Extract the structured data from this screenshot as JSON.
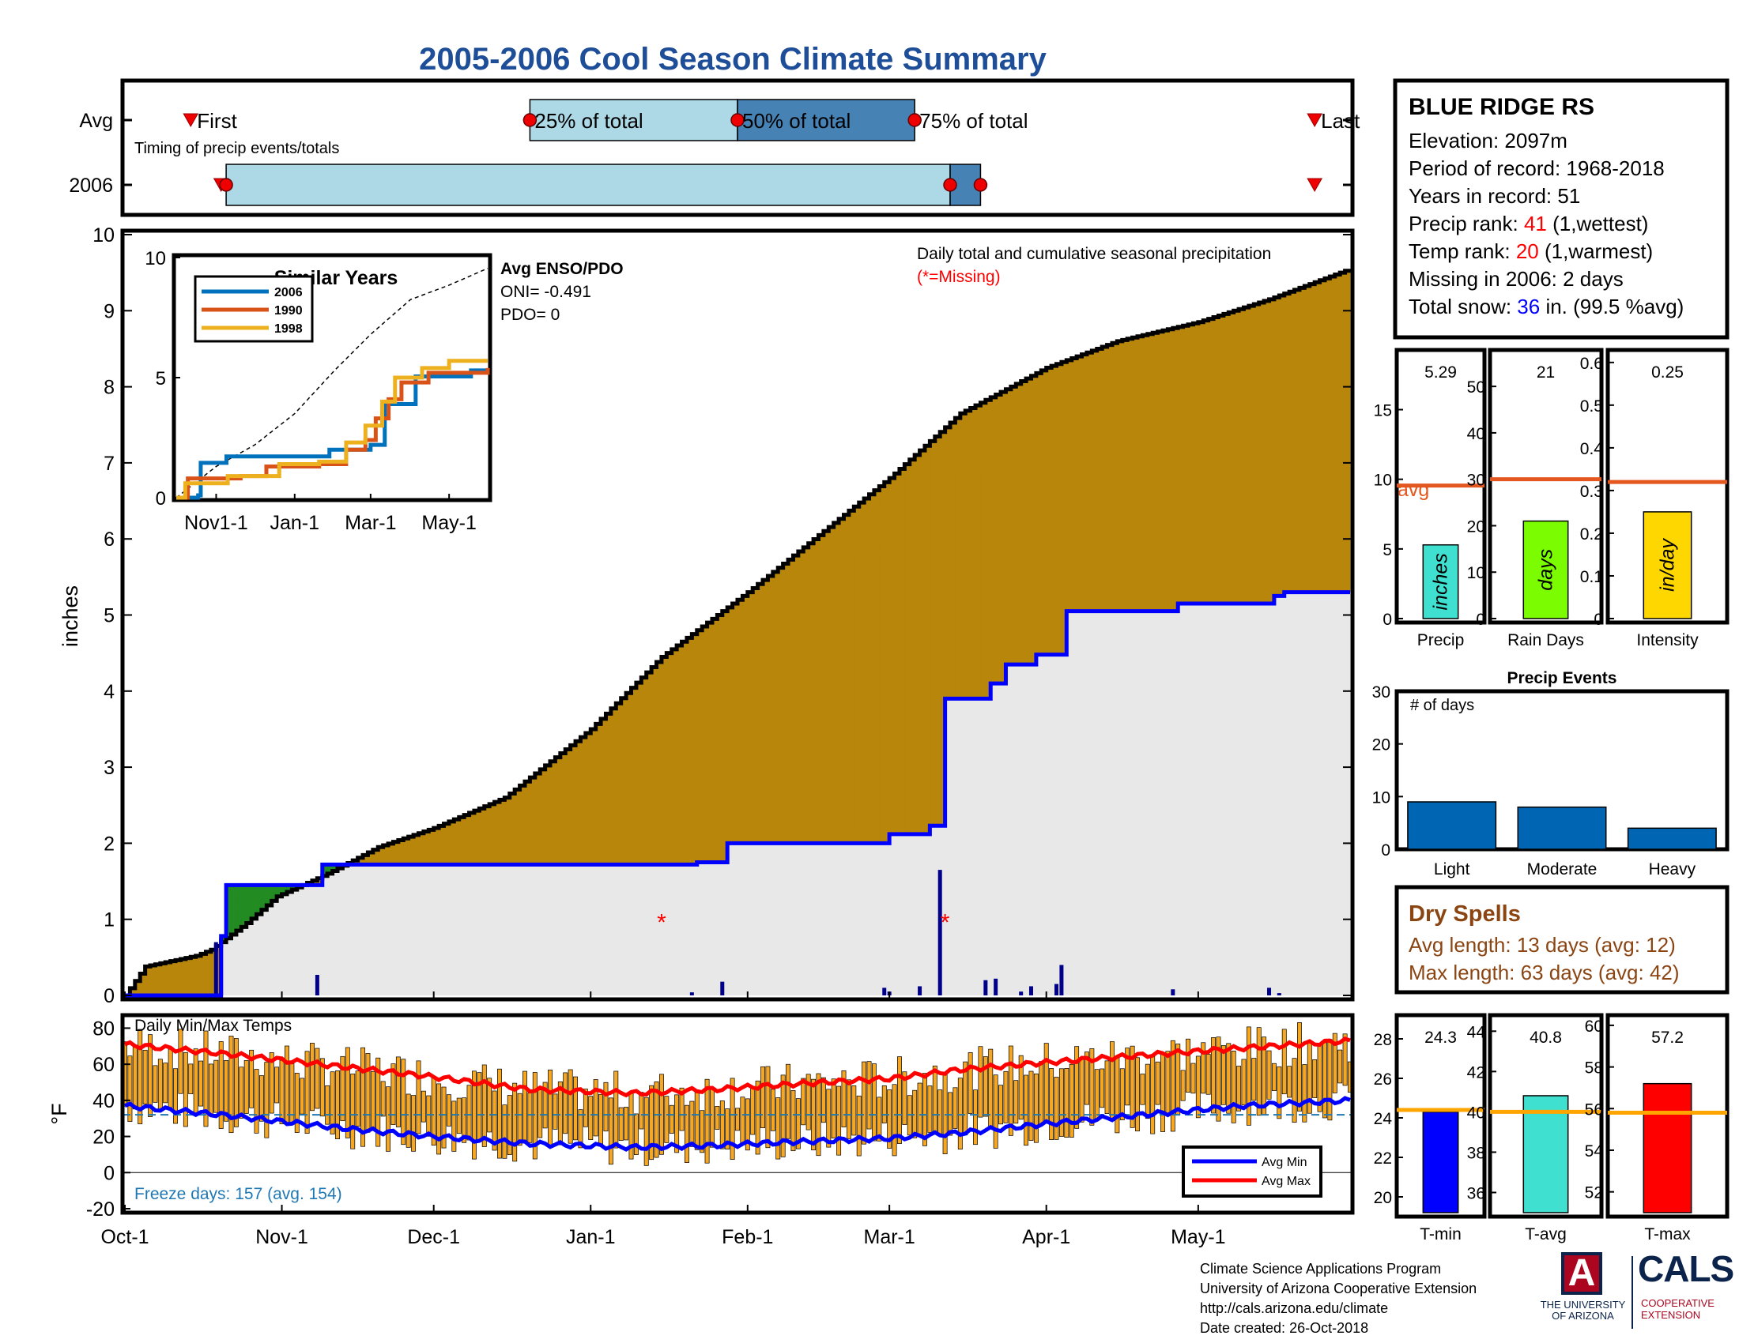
{
  "title": "2005-2006 Cool Season Climate Summary",
  "timing": {
    "rows": [
      "Avg",
      "2006"
    ],
    "caption": "Timing of precip events/totals",
    "labels": {
      "first": "First",
      "p25": "25% of total",
      "p50": "50% of total",
      "p75": "75% of total",
      "last": "Last"
    },
    "avg": {
      "first": "2005-10-14",
      "p25": "2005-12-20",
      "p50": "2006-01-30",
      "p75": "2006-03-06",
      "last": "2006-05-24"
    },
    "y2006": {
      "first": "2005-10-20",
      "p25": "2005-10-21",
      "p50": "2006-03-13",
      "p75": "2006-03-19",
      "last": "2006-05-24"
    }
  },
  "info": {
    "station": "BLUE RIDGE RS",
    "elevation": "Elevation: 2097m",
    "period": "Period of record: 1968-2018",
    "years": "Years in record: 51",
    "precip_rank_prefix": "Precip rank: ",
    "precip_rank": "41",
    "precip_rank_suffix": " (1,wettest)",
    "temp_rank_prefix": "Temp rank: ",
    "temp_rank": "20",
    "temp_rank_suffix": " (1,warmest)",
    "missing": "Missing in 2006: 2 days",
    "snow_prefix": "Total snow: ",
    "snow_value": "36",
    "snow_suffix": " in. (99.5 %avg)",
    "rank_color": "#ff0000",
    "snow_color": "#0000ff"
  },
  "colors": {
    "avg_cum": "#b8860b",
    "avg_cum_edge": "#000000",
    "obs_cum_line": "#0000ff",
    "obs_fill": "#e8e8e8",
    "surplus": "#228b22",
    "daily_bar": "#00008b",
    "temp_bar": "#f5a623",
    "avg_line": "#e4571f",
    "avg_temp_line": "#ffa500"
  },
  "chart_data": [
    {
      "id": "cumulative",
      "type": "area",
      "ylabel": "inches",
      "ylim": [
        0,
        10
      ],
      "yticks": [
        0,
        1,
        2,
        3,
        4,
        5,
        6,
        7,
        8,
        9,
        10
      ],
      "xlim": [
        "2005-10-01",
        "2006-05-31"
      ],
      "xticks": [
        {
          "date": "2005-10-01",
          "label": "Oct-1"
        },
        {
          "date": "2005-11-01",
          "label": "Nov-1"
        },
        {
          "date": "2005-12-01",
          "label": "Dec-1"
        },
        {
          "date": "2006-01-01",
          "label": "Jan-1"
        },
        {
          "date": "2006-02-01",
          "label": "Feb-1"
        },
        {
          "date": "2006-03-01",
          "label": "Mar-1"
        },
        {
          "date": "2006-04-01",
          "label": "Apr-1"
        },
        {
          "date": "2006-05-01",
          "label": "May-1"
        }
      ],
      "annotation": "Daily total and cumulative seasonal precipitation",
      "missing_note": "(*=Missing)",
      "missing_days": [
        "2006-01-15",
        "2006-03-12"
      ],
      "avg_cumulative": [
        [
          "2005-10-01",
          0.0
        ],
        [
          "2005-10-05",
          0.38
        ],
        [
          "2005-10-15",
          0.52
        ],
        [
          "2005-10-18",
          0.6
        ],
        [
          "2005-10-21",
          0.75
        ],
        [
          "2005-10-25",
          0.95
        ],
        [
          "2005-10-31",
          1.3
        ],
        [
          "2005-11-10",
          1.6
        ],
        [
          "2005-11-20",
          1.95
        ],
        [
          "2005-12-01",
          2.2
        ],
        [
          "2005-12-15",
          2.6
        ],
        [
          "2006-01-01",
          3.5
        ],
        [
          "2006-01-15",
          4.45
        ],
        [
          "2006-02-01",
          5.3
        ],
        [
          "2006-02-15",
          6.05
        ],
        [
          "2006-03-01",
          6.8
        ],
        [
          "2006-03-15",
          7.65
        ],
        [
          "2006-04-01",
          8.25
        ],
        [
          "2006-04-15",
          8.6
        ],
        [
          "2006-05-01",
          8.85
        ],
        [
          "2006-05-15",
          9.15
        ],
        [
          "2006-05-31",
          9.55
        ]
      ],
      "obs_cumulative": [
        [
          "2005-10-01",
          0.0
        ],
        [
          "2005-10-19",
          0.0
        ],
        [
          "2005-10-20",
          0.78
        ],
        [
          "2005-10-21",
          1.45
        ],
        [
          "2005-11-08",
          1.45
        ],
        [
          "2005-11-09",
          1.72
        ],
        [
          "2006-01-20",
          1.72
        ],
        [
          "2006-01-22",
          1.75
        ],
        [
          "2006-01-27",
          1.75
        ],
        [
          "2006-01-28",
          2.0
        ],
        [
          "2006-02-28",
          2.0
        ],
        [
          "2006-03-01",
          2.12
        ],
        [
          "2006-03-08",
          2.12
        ],
        [
          "2006-03-09",
          2.23
        ],
        [
          "2006-03-11",
          2.23
        ],
        [
          "2006-03-12",
          3.9
        ],
        [
          "2006-03-20",
          3.9
        ],
        [
          "2006-03-21",
          4.1
        ],
        [
          "2006-03-23",
          4.1
        ],
        [
          "2006-03-24",
          4.35
        ],
        [
          "2006-03-29",
          4.35
        ],
        [
          "2006-03-30",
          4.48
        ],
        [
          "2006-04-04",
          4.48
        ],
        [
          "2006-04-05",
          5.05
        ],
        [
          "2006-04-26",
          5.05
        ],
        [
          "2006-04-27",
          5.15
        ],
        [
          "2006-05-15",
          5.15
        ],
        [
          "2006-05-16",
          5.25
        ],
        [
          "2006-05-18",
          5.3
        ],
        [
          "2006-05-31",
          5.3
        ]
      ],
      "daily_precip": [
        [
          "2005-10-19",
          0.7
        ],
        [
          "2005-10-20",
          0.75
        ],
        [
          "2005-11-08",
          0.27
        ],
        [
          "2006-01-21",
          0.04
        ],
        [
          "2006-01-27",
          0.18
        ],
        [
          "2006-02-28",
          0.1
        ],
        [
          "2006-03-01",
          0.05
        ],
        [
          "2006-03-07",
          0.12
        ],
        [
          "2006-03-11",
          1.65
        ],
        [
          "2006-03-20",
          0.2
        ],
        [
          "2006-03-22",
          0.22
        ],
        [
          "2006-03-27",
          0.05
        ],
        [
          "2006-03-29",
          0.12
        ],
        [
          "2006-04-03",
          0.15
        ],
        [
          "2006-04-04",
          0.4
        ],
        [
          "2006-04-26",
          0.08
        ],
        [
          "2006-05-15",
          0.1
        ],
        [
          "2006-05-17",
          0.03
        ]
      ]
    },
    {
      "id": "similar_years",
      "type": "line",
      "title": "Similar Years",
      "ylim": [
        0,
        10
      ],
      "yticks": [
        0,
        5,
        10
      ],
      "xticks": [
        "Nov1-1",
        "Jan-1",
        "Mar-1",
        "May-1"
      ],
      "enso_title": "Avg ENSO/PDO",
      "oni": "ONI= -0.491",
      "pdo": "PDO= 0",
      "series": [
        {
          "name": "2006",
          "color": "#0072bd",
          "points": [
            [
              "2005-10-01",
              0
            ],
            [
              "2005-10-18",
              0.1
            ],
            [
              "2005-10-20",
              1.45
            ],
            [
              "2005-11-09",
              1.72
            ],
            [
              "2006-01-28",
              2.0
            ],
            [
              "2006-03-01",
              2.2
            ],
            [
              "2006-03-12",
              3.9
            ],
            [
              "2006-04-05",
              5.05
            ],
            [
              "2006-05-18",
              5.3
            ],
            [
              "2006-05-31",
              5.3
            ]
          ]
        },
        {
          "name": "1990",
          "color": "#d95319",
          "points": [
            [
              "2005-10-01",
              0
            ],
            [
              "2005-10-10",
              0.8
            ],
            [
              "2005-11-20",
              0.9
            ],
            [
              "2005-12-10",
              1.3
            ],
            [
              "2006-01-20",
              1.4
            ],
            [
              "2006-02-10",
              2.0
            ],
            [
              "2006-02-25",
              2.4
            ],
            [
              "2006-03-05",
              3.3
            ],
            [
              "2006-03-15",
              4.1
            ],
            [
              "2006-03-25",
              4.8
            ],
            [
              "2006-04-15",
              5.2
            ],
            [
              "2006-05-31",
              5.4
            ]
          ]
        },
        {
          "name": "1998",
          "color": "#edb120",
          "points": [
            [
              "2005-10-01",
              0
            ],
            [
              "2005-10-08",
              0.6
            ],
            [
              "2005-11-10",
              0.9
            ],
            [
              "2005-12-20",
              1.4
            ],
            [
              "2006-01-20",
              1.5
            ],
            [
              "2006-02-10",
              2.3
            ],
            [
              "2006-02-25",
              3.0
            ],
            [
              "2006-03-10",
              4.0
            ],
            [
              "2006-03-20",
              5.0
            ],
            [
              "2006-04-10",
              5.4
            ],
            [
              "2006-05-01",
              5.7
            ],
            [
              "2006-05-31",
              5.7
            ]
          ]
        }
      ],
      "avg_dashed": [
        [
          "2005-10-01",
          0
        ],
        [
          "2005-11-01",
          1.3
        ],
        [
          "2005-12-01",
          2.2
        ],
        [
          "2006-01-01",
          3.5
        ],
        [
          "2006-02-01",
          5.3
        ],
        [
          "2006-03-01",
          6.8
        ],
        [
          "2006-04-01",
          8.25
        ],
        [
          "2006-05-01",
          8.85
        ],
        [
          "2006-05-31",
          9.55
        ]
      ]
    },
    {
      "id": "totals",
      "type": "bar",
      "avg_label": "avg",
      "panels": [
        {
          "name": "Precip",
          "value": 5.29,
          "value_label": "5.29",
          "unit": "inches",
          "avg": 9.55,
          "ylim": [
            0,
            19
          ],
          "yticks": [
            0,
            5,
            10,
            15
          ],
          "color": "#40e0d0"
        },
        {
          "name": "Rain Days",
          "value": 21,
          "value_label": "21",
          "unit": "days",
          "avg": 30,
          "ylim": [
            0,
            57
          ],
          "yticks": [
            0,
            10,
            20,
            30,
            40,
            50
          ],
          "color": "#7cfc00"
        },
        {
          "name": "Intensity",
          "value": 0.25,
          "value_label": "0.25",
          "unit": "in/day",
          "avg": 0.32,
          "ylim": [
            0,
            0.62
          ],
          "yticks": [
            0,
            0.1,
            0.2,
            0.3,
            0.4,
            0.5,
            0.6
          ],
          "color": "#ffd700"
        }
      ]
    },
    {
      "id": "precip_events",
      "type": "bar",
      "title": "Precip Events",
      "ylabel": "# of days",
      "ylim": [
        0,
        30
      ],
      "yticks": [
        0,
        10,
        20,
        30
      ],
      "categories": [
        "Light",
        "Moderate",
        "Heavy"
      ],
      "values": [
        9,
        8,
        4
      ],
      "color": "#0066b3"
    },
    {
      "id": "temps",
      "type": "bar",
      "title": "Daily Min/Max Temps",
      "ylabel": "°F",
      "ylim": [
        -20,
        85
      ],
      "yticks": [
        -20,
        0,
        20,
        40,
        60,
        80
      ],
      "freeze_line": 32,
      "freeze_note": "Freeze days: 157 (avg. 154)",
      "legend": [
        "Avg Min",
        "Avg Max"
      ],
      "avg_min_line": [
        [
          "2005-10-01",
          37
        ],
        [
          "2005-10-20",
          32
        ],
        [
          "2005-11-15",
          24
        ],
        [
          "2005-12-01",
          20
        ],
        [
          "2005-12-20",
          16
        ],
        [
          "2006-01-10",
          14
        ],
        [
          "2006-01-25",
          15
        ],
        [
          "2006-02-10",
          17
        ],
        [
          "2006-03-01",
          19
        ],
        [
          "2006-03-15",
          22
        ],
        [
          "2006-04-01",
          27
        ],
        [
          "2006-04-20",
          32
        ],
        [
          "2006-05-10",
          37
        ],
        [
          "2006-05-31",
          40
        ]
      ],
      "avg_max_line": [
        [
          "2005-10-01",
          71
        ],
        [
          "2005-10-20",
          66
        ],
        [
          "2005-11-15",
          58
        ],
        [
          "2005-12-01",
          53
        ],
        [
          "2005-12-20",
          46
        ],
        [
          "2006-01-10",
          44
        ],
        [
          "2006-01-25",
          46
        ],
        [
          "2006-02-10",
          49
        ],
        [
          "2006-03-01",
          52
        ],
        [
          "2006-03-15",
          57
        ],
        [
          "2006-04-01",
          61
        ],
        [
          "2006-04-20",
          65
        ],
        [
          "2006-05-10",
          69
        ],
        [
          "2006-05-31",
          73
        ]
      ]
    },
    {
      "id": "temp_summary",
      "type": "bar",
      "panels": [
        {
          "name": "T-min",
          "value": 24.3,
          "value_label": "24.3",
          "avg": 24.4,
          "ylim": [
            19.2,
            29
          ],
          "yticks": [
            20,
            22,
            24,
            26,
            28
          ],
          "color": "#0000ff"
        },
        {
          "name": "T-avg",
          "value": 40.8,
          "value_label": "40.8",
          "avg": 40.0,
          "ylim": [
            35,
            44.6
          ],
          "yticks": [
            36,
            38,
            40,
            42,
            44
          ],
          "color": "#40e0d0"
        },
        {
          "name": "T-max",
          "value": 57.2,
          "value_label": "57.2",
          "avg": 55.8,
          "ylim": [
            51,
            60.3
          ],
          "yticks": [
            52,
            54,
            56,
            58,
            60
          ],
          "color": "#ff0000"
        }
      ]
    }
  ],
  "dry_spells": {
    "title": "Dry Spells",
    "avg": "Avg length: 13 days (avg: 12)",
    "max": "Max length: 63 days (avg: 42)",
    "color": "#8b4513"
  },
  "footer": {
    "line1": "Climate Science Applications Program",
    "line2": "University of Arizona Cooperative Extension",
    "line3": "http://cals.arizona.edu/climate",
    "line4": " Date created: 26-Oct-2018"
  },
  "logos": {
    "ua_letter": "A",
    "ua_line1": "THE UNIVERSITY",
    "ua_line2": "OF ARIZONA",
    "cals": "CALS",
    "cals_line1": "COOPERATIVE",
    "cals_line2": "EXTENSION",
    "navy": "#0c234b",
    "red": "#ab0520"
  }
}
